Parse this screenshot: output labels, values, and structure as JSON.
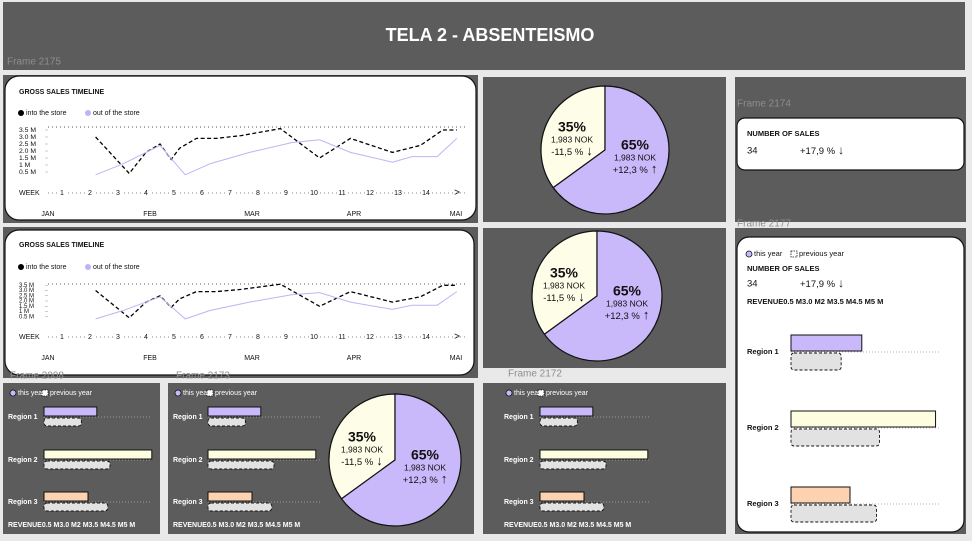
{
  "header": {
    "title": "TELA 2 - ABSENTEISMO"
  },
  "frame_labels": [
    "Frame 2175",
    "Frame 2174",
    "Frame 2177",
    "Frame 2008",
    "Frame 2173",
    "Frame 2172"
  ],
  "timelines": [
    {
      "title": "GROSS SALES TIMELINE",
      "series": [
        {
          "name": "into the store",
          "color": "#000000",
          "dashed": true,
          "x": [
            2.2,
            3.4,
            4.0,
            4.5,
            4.9,
            5.2,
            5.8,
            6.5,
            7.4,
            8.8,
            10.2,
            11.3,
            12.8,
            13.8,
            14.6,
            15.1
          ],
          "values": [
            3.0,
            0.4,
            1.9,
            2.5,
            1.4,
            2.2,
            2.9,
            2.9,
            3.1,
            3.6,
            1.5,
            2.9,
            1.9,
            2.4,
            3.5,
            3.5
          ]
        },
        {
          "name": "out of the store",
          "color": "#c3b1f5",
          "dashed": false,
          "x": [
            2.2,
            3.2,
            4.5,
            5.4,
            6.3,
            7.7,
            9.2,
            10.2,
            11.3,
            12.8,
            13.5,
            14.4,
            15.1
          ],
          "values": [
            0.3,
            1.1,
            2.4,
            0.3,
            1.1,
            1.9,
            2.6,
            2.8,
            1.9,
            1.2,
            1.6,
            1.6,
            2.9
          ]
        }
      ],
      "xlim": [
        0.5,
        15.5
      ],
      "xlabel": "WEEK",
      "xticks": [
        1,
        2,
        3,
        4,
        5,
        6,
        7,
        8,
        9,
        10,
        11,
        12,
        13,
        14
      ],
      "next": ">",
      "months": [
        "JAN",
        "FEB",
        "MAR",
        "APR",
        "MAI"
      ],
      "ylim": [
        0,
        4
      ],
      "yticks": [
        {
          "value": 3.5,
          "label": "3.5 M"
        },
        {
          "value": 3.0,
          "label": "3.0 M"
        },
        {
          "value": 2.5,
          "label": "2.5 M"
        },
        {
          "value": 2.0,
          "label": "2.0 M"
        },
        {
          "value": 1.5,
          "label": "1.5 M"
        },
        {
          "value": 1,
          "label": "1 M"
        },
        {
          "value": 0.5,
          "label": "0.5 M"
        }
      ]
    },
    {
      "title": "GROSS SALES TIMELINE",
      "series": [
        {
          "name": "into the store",
          "color": "#000000",
          "dashed": true,
          "x": [
            2.2,
            3.4,
            4.0,
            4.5,
            4.9,
            5.2,
            5.8,
            6.5,
            7.4,
            8.8,
            10.2,
            11.3,
            12.8,
            13.8,
            14.6,
            15.1
          ],
          "values": [
            3.0,
            0.4,
            1.9,
            2.5,
            1.4,
            2.2,
            2.9,
            2.9,
            3.1,
            3.6,
            1.5,
            2.9,
            1.9,
            2.4,
            3.5,
            3.5
          ]
        },
        {
          "name": "out of the store",
          "color": "#c3b1f5",
          "dashed": false,
          "x": [
            2.2,
            3.2,
            4.5,
            5.4,
            6.3,
            7.7,
            9.2,
            10.2,
            11.3,
            12.8,
            13.5,
            14.4,
            15.1
          ],
          "values": [
            0.3,
            1.1,
            2.4,
            0.3,
            1.1,
            1.9,
            2.6,
            2.8,
            1.9,
            1.2,
            1.6,
            1.6,
            2.9
          ]
        }
      ],
      "xlim": [
        0.5,
        15.5
      ],
      "xlabel": "WEEK",
      "xticks": [
        1,
        2,
        3,
        4,
        5,
        6,
        7,
        8,
        9,
        10,
        11,
        12,
        13,
        14
      ],
      "next": ">",
      "months": [
        "JAN",
        "FEB",
        "MAR",
        "APR",
        "MAI"
      ],
      "ylim": [
        0,
        4
      ],
      "yticks": [
        {
          "value": 3.5,
          "label": "3.5 M"
        },
        {
          "value": 3.0,
          "label": "3.0 M"
        },
        {
          "value": 2.5,
          "label": "2.5 M"
        },
        {
          "value": 2.0,
          "label": "2.0 M"
        },
        {
          "value": 1.5,
          "label": "1.5 M"
        },
        {
          "value": 1,
          "label": "1 M"
        },
        {
          "value": 0.5,
          "label": "0.5 M"
        }
      ]
    }
  ],
  "pies": [
    {
      "segments": [
        {
          "value": 35,
          "label": "35%",
          "amount": "1,983 NOK",
          "change": "-11,5 %",
          "arrow": "↓",
          "color": "#fdfde8"
        },
        {
          "value": 65,
          "label": "65%",
          "amount": "1,983 NOK",
          "change": "+12,3 %",
          "arrow": "↑",
          "color": "#c9b8fa"
        }
      ]
    },
    {
      "segments": [
        {
          "value": 35,
          "label": "35%",
          "amount": "1,983 NOK",
          "change": "-11,5 %",
          "arrow": "↓",
          "color": "#fdfde8"
        },
        {
          "value": 65,
          "label": "65%",
          "amount": "1,983 NOK",
          "change": "+12,3 %",
          "arrow": "↑",
          "color": "#c9b8fa"
        }
      ]
    },
    {
      "segments": [
        {
          "value": 35,
          "label": "35%",
          "amount": "1,983 NOK",
          "change": "-11,5 %",
          "arrow": "↓",
          "color": "#fdfde8"
        },
        {
          "value": 65,
          "label": "65%",
          "amount": "1,983 NOK",
          "change": "+12,3 %",
          "arrow": "↑",
          "color": "#c9b8fa"
        }
      ]
    }
  ],
  "sales_cards": [
    {
      "label": "NUMBER OF SALES",
      "value": 34,
      "change": "+17,9 %",
      "arrow": "↓"
    },
    {
      "label": "NUMBER OF SALES",
      "value": 34,
      "change": "+17,9 %",
      "arrow": "↓"
    }
  ],
  "bar_charts": [
    {
      "categories": [
        "Region 1",
        "Region 2",
        "Region 3"
      ],
      "series": [
        {
          "name": "this year",
          "colors": [
            "#c9b8fa",
            "#fdfde0",
            "#fdd2b0"
          ],
          "values": [
            2.4,
            4.9,
            2.0
          ]
        },
        {
          "name": "previous year",
          "color": "#e2e2e2",
          "values": [
            1.7,
            3.0,
            2.9
          ]
        }
      ],
      "axis_label": "REVENUE",
      "tick_labels": [
        "0.5 M",
        "3.0 M",
        "2 M",
        "3.5 M",
        "4.5 M",
        "5 M"
      ]
    },
    {
      "categories": [
        "Region 1",
        "Region 2",
        "Region 3"
      ],
      "series": [
        {
          "name": "this year",
          "colors": [
            "#c9b8fa",
            "#fdfde0",
            "#fdd2b0"
          ],
          "values": [
            2.4,
            4.9,
            2.0
          ]
        },
        {
          "name": "previous year",
          "color": "#e2e2e2",
          "values": [
            1.7,
            3.0,
            2.9
          ]
        }
      ],
      "axis_label": "REVENUE",
      "tick_labels": [
        "0.5 M",
        "3.0 M",
        "2 M",
        "3.5 M",
        "4.5 M",
        "5 M"
      ]
    },
    {
      "categories": [
        "Region 1",
        "Region 2",
        "Region 3"
      ],
      "series": [
        {
          "name": "this year",
          "colors": [
            "#c9b8fa",
            "#fdfde0",
            "#fdd2b0"
          ],
          "values": [
            2.4,
            4.9,
            2.0
          ]
        },
        {
          "name": "previous year",
          "color": "#e2e2e2",
          "values": [
            1.7,
            3.0,
            2.9
          ]
        }
      ],
      "axis_label": "REVENUE",
      "tick_labels": [
        "0.5 M",
        "3.0 M",
        "2 M",
        "3.5 M",
        "4.5 M",
        "5 M"
      ]
    },
    {
      "categories": [
        "Region 1",
        "Region 2",
        "Region 3"
      ],
      "series": [
        {
          "name": "this year",
          "colors": [
            "#c9b8fa",
            "#fdfde0",
            "#fdd2b0"
          ],
          "values": [
            2.4,
            4.9,
            2.0
          ]
        },
        {
          "name": "previous year",
          "color": "#e2e2e2",
          "values": [
            1.7,
            3.0,
            2.9
          ]
        }
      ],
      "axis_label": "REVENUE",
      "tick_labels": [
        "0.5 M",
        "3.0 M",
        "2 M",
        "3.5 M",
        "4.5 M",
        "5 M"
      ]
    }
  ]
}
